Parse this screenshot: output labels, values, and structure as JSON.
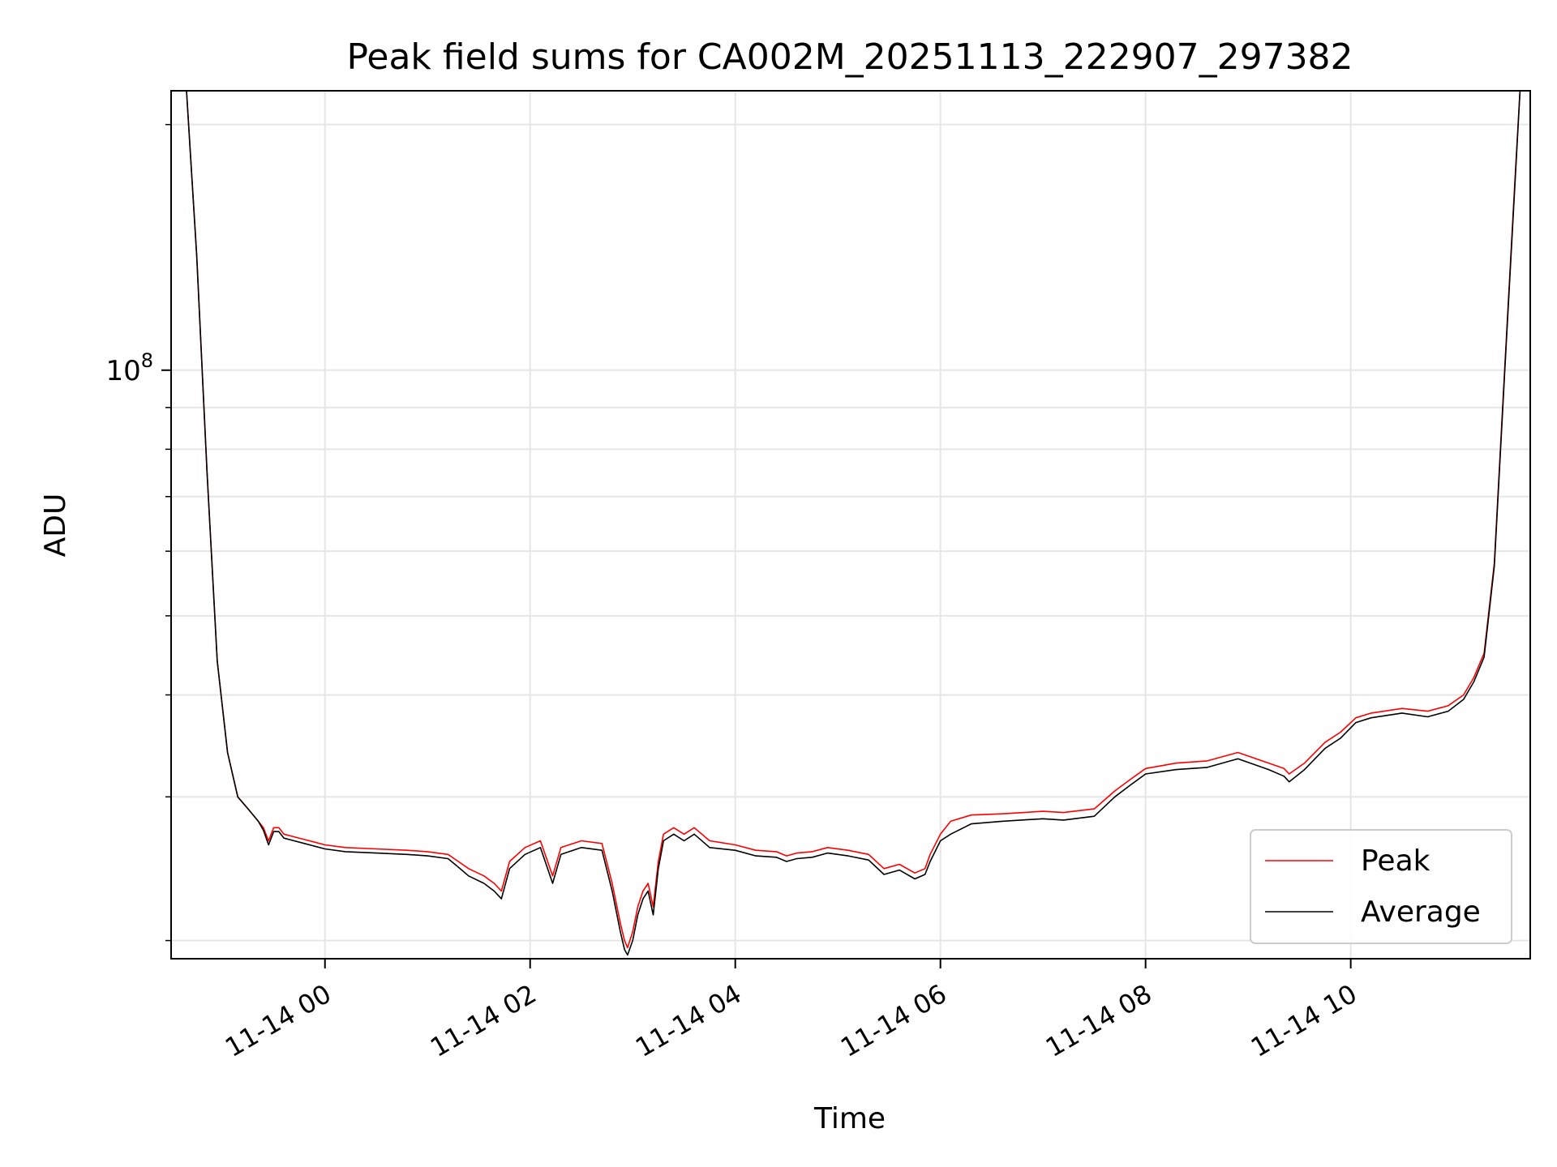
{
  "chart_data": {
    "type": "line",
    "title": "Peak field sums for CA002M_20251113_222907_297382",
    "xlabel": "Time",
    "ylabel": "ADU",
    "y_scale": "log",
    "ylim": [
      19000000,
      220000000
    ],
    "xlim_hours": [
      -1.5,
      11.75
    ],
    "x_ticks": [
      {
        "hour": 0,
        "label": "11-14 00"
      },
      {
        "hour": 2,
        "label": "11-14 02"
      },
      {
        "hour": 4,
        "label": "11-14 04"
      },
      {
        "hour": 6,
        "label": "11-14 06"
      },
      {
        "hour": 8,
        "label": "11-14 08"
      },
      {
        "hour": 10,
        "label": "11-14 10"
      }
    ],
    "y_major_ticks": [
      {
        "value": 100000000,
        "base": "10",
        "exp": "8"
      }
    ],
    "y_minor_ticks": [
      20000000,
      30000000,
      40000000,
      50000000,
      60000000,
      70000000,
      80000000,
      90000000,
      200000000
    ],
    "grid": true,
    "legend_position": "lower-right",
    "series": [
      {
        "name": "Peak",
        "color": "#ff0000"
      },
      {
        "name": "Average",
        "color": "#000000"
      }
    ],
    "x_hours": [
      -1.35,
      -1.25,
      -1.15,
      -1.05,
      -0.95,
      -0.85,
      -0.75,
      -0.65,
      -0.6,
      -0.55,
      -0.5,
      -0.45,
      -0.4,
      -0.3,
      -0.2,
      -0.1,
      0.0,
      0.2,
      0.5,
      0.8,
      1.0,
      1.2,
      1.3,
      1.4,
      1.55,
      1.65,
      1.72,
      1.8,
      1.95,
      2.1,
      2.22,
      2.3,
      2.5,
      2.7,
      2.8,
      2.88,
      2.92,
      2.95,
      3.0,
      3.05,
      3.1,
      3.15,
      3.2,
      3.25,
      3.3,
      3.4,
      3.5,
      3.6,
      3.75,
      4.0,
      4.2,
      4.4,
      4.5,
      4.6,
      4.75,
      4.9,
      5.1,
      5.3,
      5.45,
      5.6,
      5.75,
      5.85,
      5.9,
      6.0,
      6.1,
      6.3,
      6.6,
      7.0,
      7.2,
      7.5,
      7.7,
      7.85,
      8.0,
      8.3,
      8.6,
      8.9,
      9.2,
      9.35,
      9.4,
      9.55,
      9.75,
      9.9,
      10.05,
      10.2,
      10.5,
      10.75,
      10.95,
      11.1,
      11.2,
      11.3,
      11.4,
      11.5,
      11.6,
      11.65
    ],
    "peak": [
      220000000,
      138000000,
      75000000,
      44000000,
      34000000,
      30000000,
      29000000,
      28000000,
      27500000,
      26500000,
      27500000,
      27500000,
      27000000,
      26800000,
      26600000,
      26400000,
      26200000,
      26000000,
      25900000,
      25800000,
      25700000,
      25500000,
      25000000,
      24500000,
      24000000,
      23500000,
      23000000,
      25000000,
      26000000,
      26500000,
      24000000,
      26000000,
      26500000,
      26300000,
      23500000,
      21000000,
      20000000,
      19600000,
      20500000,
      22000000,
      23000000,
      23500000,
      22000000,
      25000000,
      27000000,
      27500000,
      27000000,
      27500000,
      26500000,
      26200000,
      25800000,
      25700000,
      25400000,
      25600000,
      25700000,
      26000000,
      25800000,
      25500000,
      24500000,
      24800000,
      24200000,
      24500000,
      25500000,
      27000000,
      28000000,
      28500000,
      28600000,
      28800000,
      28700000,
      29000000,
      30500000,
      31500000,
      32500000,
      33000000,
      33200000,
      34000000,
      33000000,
      32500000,
      32000000,
      33000000,
      35000000,
      36000000,
      37500000,
      38000000,
      38500000,
      38200000,
      38800000,
      40000000,
      42000000,
      45000000,
      58000000,
      100000000,
      170000000,
      220000000
    ],
    "average": [
      220000000,
      138000000,
      75000000,
      44000000,
      34000000,
      30000000,
      29000000,
      28000000,
      27300000,
      26200000,
      27200000,
      27200000,
      26700000,
      26500000,
      26300000,
      26100000,
      25900000,
      25700000,
      25600000,
      25500000,
      25400000,
      25200000,
      24600000,
      24000000,
      23500000,
      23000000,
      22500000,
      24500000,
      25500000,
      26000000,
      23500000,
      25500000,
      26000000,
      25800000,
      23000000,
      20500000,
      19500000,
      19200000,
      20000000,
      21500000,
      22500000,
      23000000,
      21500000,
      24500000,
      26500000,
      27000000,
      26500000,
      27000000,
      26000000,
      25800000,
      25400000,
      25300000,
      25000000,
      25200000,
      25300000,
      25600000,
      25400000,
      25100000,
      24100000,
      24400000,
      23800000,
      24100000,
      25000000,
      26500000,
      27000000,
      27800000,
      28000000,
      28200000,
      28100000,
      28400000,
      30000000,
      31000000,
      32000000,
      32400000,
      32600000,
      33400000,
      32400000,
      31800000,
      31300000,
      32400000,
      34400000,
      35400000,
      37000000,
      37500000,
      38000000,
      37600000,
      38200000,
      39500000,
      41500000,
      44500000,
      57500000,
      99000000,
      168000000,
      220000000
    ]
  }
}
